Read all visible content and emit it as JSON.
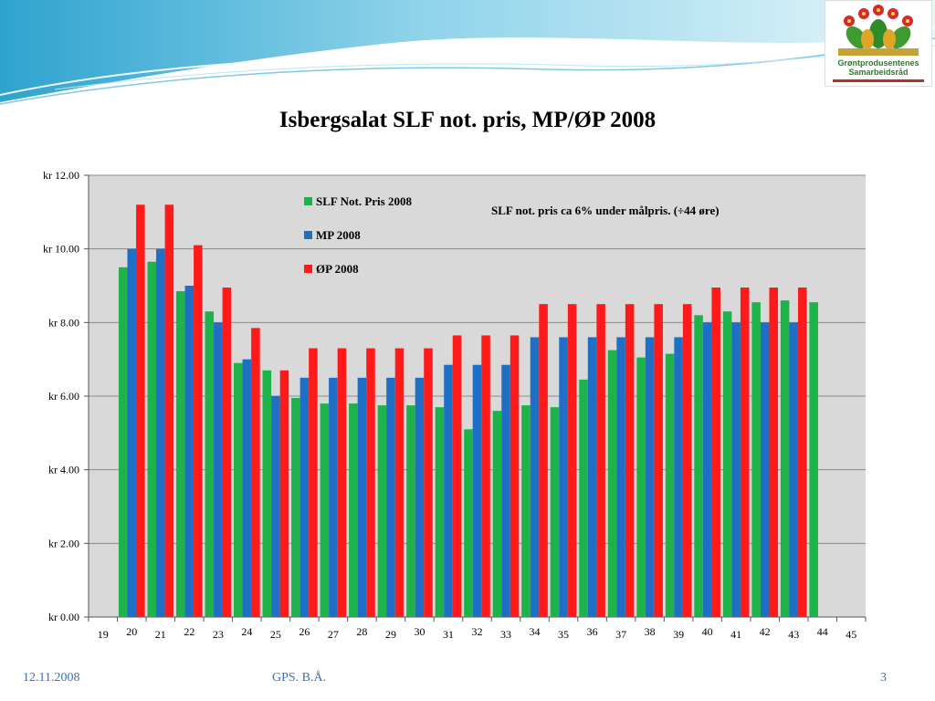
{
  "slide": {
    "title": "Isbergsalat SLF not. pris, MP/ØP 2008",
    "logo_line1": "Grøntprodusentenes",
    "logo_line2": "Samarbeidsråd",
    "footer_date": "12.11.2008",
    "footer_center": "GPS. B.Å.",
    "page_number": "3"
  },
  "colors": {
    "slf": "#1db34a",
    "mp": "#1f6fc6",
    "op": "#ff1a1a",
    "plot_bg": "#d9d9d9",
    "gridline": "#8a8a8a"
  },
  "chart_data": {
    "type": "bar",
    "categories": [
      "19",
      "20",
      "21",
      "22",
      "23",
      "24",
      "25",
      "26",
      "27",
      "28",
      "29",
      "30",
      "31",
      "32",
      "33",
      "34",
      "35",
      "36",
      "37",
      "38",
      "39",
      "40",
      "41",
      "42",
      "43",
      "44",
      "45"
    ],
    "series": [
      {
        "name": "SLF Not. Pris 2008",
        "color_key": "slf",
        "values": [
          null,
          9.5,
          9.65,
          8.85,
          8.3,
          6.9,
          6.7,
          5.95,
          5.8,
          5.8,
          5.75,
          5.75,
          5.7,
          5.1,
          5.6,
          5.75,
          5.7,
          6.45,
          7.25,
          7.05,
          7.15,
          8.2,
          8.3,
          8.55,
          8.6,
          8.55,
          null
        ]
      },
      {
        "name": "MP 2008",
        "color_key": "mp",
        "values": [
          null,
          10.0,
          10.0,
          9.0,
          8.0,
          7.0,
          6.0,
          6.5,
          6.5,
          6.5,
          6.5,
          6.5,
          6.85,
          6.85,
          6.85,
          7.6,
          7.6,
          7.6,
          7.6,
          7.6,
          7.6,
          8.0,
          8.0,
          8.0,
          8.0,
          null,
          null
        ]
      },
      {
        "name": "ØP 2008",
        "color_key": "op",
        "values": [
          null,
          11.2,
          11.2,
          10.1,
          8.95,
          7.85,
          6.7,
          7.3,
          7.3,
          7.3,
          7.3,
          7.3,
          7.65,
          7.65,
          7.65,
          8.5,
          8.5,
          8.5,
          8.5,
          8.5,
          8.5,
          8.95,
          8.95,
          8.95,
          8.95,
          null,
          null
        ]
      }
    ],
    "title": "Isbergsalat SLF not. pris, MP/ØP 2008",
    "xlabel": "",
    "ylabel": "",
    "ylim": [
      0,
      12
    ],
    "yticks": [
      0,
      2,
      4,
      6,
      8,
      10,
      12
    ],
    "ytick_labels": [
      "kr 0.00",
      "kr 2.00",
      "kr 4.00",
      "kr 6.00",
      "kr 8.00",
      "kr 10.00",
      "kr 12.00"
    ],
    "grid": true,
    "legend_position": "top-left",
    "annotation": "SLF not. pris ca 6% under målpris. (÷44 øre)"
  }
}
